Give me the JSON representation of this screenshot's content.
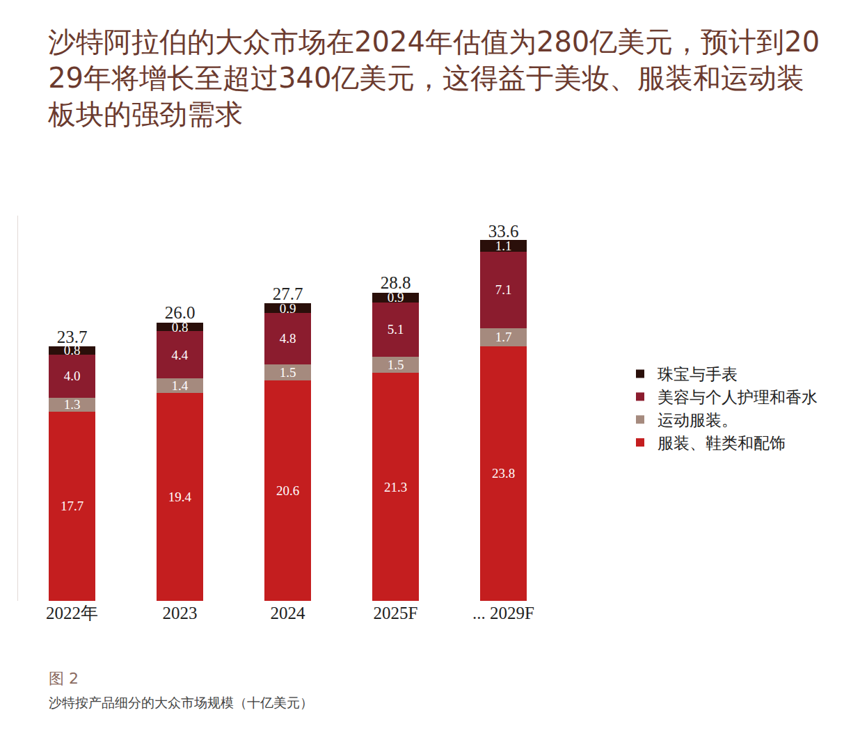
{
  "chart_data": {
    "type": "bar",
    "title": "沙特阿拉伯的大众市场在2024年估值为280亿美元，预计到2029年将增长至超过340亿美元，这得益于美妆、服装和运动装板块的强劲需求",
    "categories": [
      "2022年",
      "2023",
      "2024",
      "2025F",
      "... 2029F"
    ],
    "stacked": true,
    "data_labels": true,
    "legend": "right",
    "tick_labels": "x",
    "ylim": [
      0,
      36
    ],
    "series": [
      {
        "name": "服装、鞋类和配饰",
        "color": "#c41e1f",
        "values": [
          17.7,
          19.4,
          20.6,
          21.3,
          23.8
        ],
        "value_labels": [
          "17.7",
          "19.4",
          "20.6",
          "21.3",
          "23.8"
        ]
      },
      {
        "name": "运动服装。",
        "color": "#a58a7e",
        "values": [
          1.3,
          1.4,
          1.5,
          1.5,
          1.7
        ],
        "value_labels": [
          "1.3",
          "1.4",
          "1.5",
          "1.5",
          "1.7"
        ]
      },
      {
        "name": "美容与个人护理和香水",
        "color": "#8b1c2e",
        "values": [
          4.0,
          4.4,
          4.8,
          5.1,
          7.1
        ],
        "value_labels": [
          "4.0",
          "4.4",
          "4.8",
          "5.1",
          "7.1"
        ]
      },
      {
        "name": "珠宝与手表",
        "color": "#2a0f0a",
        "values": [
          0.8,
          0.8,
          0.9,
          0.9,
          1.1
        ],
        "value_labels": [
          "0.8",
          "0.8",
          "0.9",
          "0.9",
          "1.1"
        ]
      }
    ],
    "totals": [
      23.7,
      26.0,
      27.7,
      28.8,
      33.6
    ],
    "total_labels": [
      "23.7",
      "26.0",
      "27.7",
      "28.8",
      "33.6"
    ],
    "annotations": [
      "图 2",
      "沙特按产品细分的大众市场规模（十亿美元）"
    ]
  }
}
